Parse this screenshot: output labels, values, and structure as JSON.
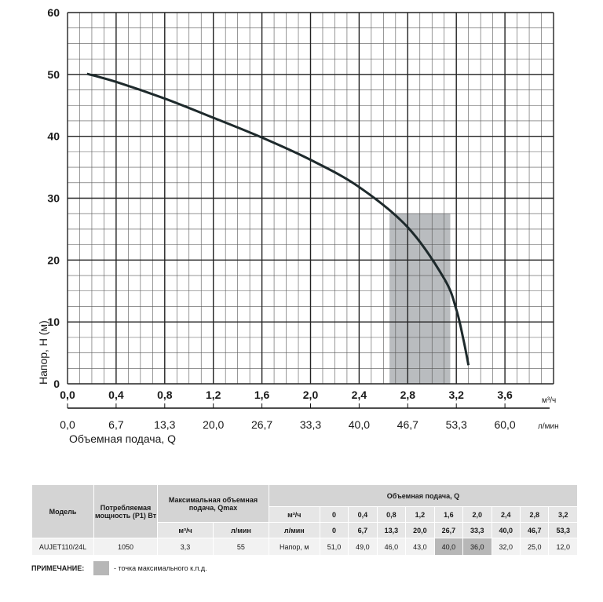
{
  "chart_data": {
    "type": "line",
    "ylabel": "Напор, H (м)",
    "xlabel": "Объемная подача, Q",
    "x_unit": "м³/ч",
    "x2_unit": "л/мин",
    "xlim": [
      0,
      4.0
    ],
    "ylim": [
      0,
      60
    ],
    "x_ticks": [
      "0,0",
      "0,4",
      "0,8",
      "1,2",
      "1,6",
      "2,0",
      "2,4",
      "2,8",
      "3,2",
      "3,6"
    ],
    "x2_ticks": [
      "0,0",
      "6,7",
      "13,3",
      "20,0",
      "26,7",
      "33,3",
      "40,0",
      "46,7",
      "53,3",
      "60,0"
    ],
    "y_ticks": [
      "0",
      "10",
      "20",
      "30",
      "40",
      "50",
      "60"
    ],
    "grid": true,
    "series": [
      {
        "x": [
          0.16,
          0.4,
          0.8,
          1.2,
          1.6,
          2.0,
          2.4,
          2.8,
          3.1,
          3.2,
          3.26,
          3.3
        ],
        "y": [
          50.1,
          48.8,
          46.1,
          43.0,
          39.8,
          36.2,
          31.8,
          25.3,
          17.0,
          12.0,
          7.0,
          3.0
        ]
      }
    ],
    "highlight_region": {
      "x_range": [
        2.65,
        3.15
      ]
    }
  },
  "table": {
    "headers": {
      "model": "Модель",
      "power": "Потребляемая мощность (P1) Вт",
      "qmax": "Максимальная объемная подача, Qmax",
      "flow": "Объемная подача, Q",
      "qmax_unit_m3": "м³/ч",
      "qmax_unit_l": "л/мин",
      "flow_unit_m3": "м³/ч",
      "flow_unit_l": "л/мин"
    },
    "flow_m3": [
      "0",
      "0,4",
      "0,8",
      "1,2",
      "1,6",
      "2,0",
      "2,4",
      "2,8",
      "3,2"
    ],
    "flow_l": [
      "0",
      "6,7",
      "13,3",
      "20,0",
      "26,7",
      "33,3",
      "40,0",
      "46,7",
      "53,3"
    ],
    "row": {
      "model": "AUJET110/24L",
      "power": "1050",
      "qmax_m3": "3,3",
      "qmax_l": "55",
      "head_label": "Напор, м",
      "heads": [
        "51,0",
        "49,0",
        "46,0",
        "43,0",
        "40,0",
        "36,0",
        "32,0",
        "25,0",
        "12,0"
      ]
    }
  },
  "note": {
    "label": "ПРИМЕЧАНИЕ:",
    "text": "- точка максимального к.п.д."
  },
  "colors": {
    "curve": "#1e2a2c",
    "grid": "#2a2a2a",
    "highlight": "#b9bcbf"
  }
}
